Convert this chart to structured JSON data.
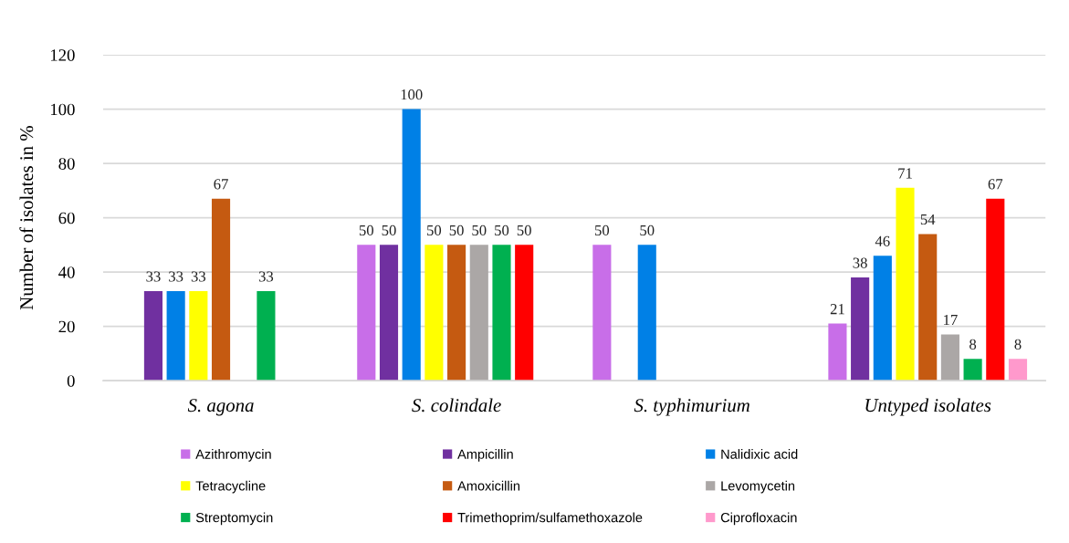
{
  "chart_data": {
    "type": "bar",
    "ylabel": "Number of isolates in %",
    "categories": [
      "S. agona",
      "S. colindale",
      "S. typhimurium",
      "Untyped isolates"
    ],
    "series": [
      {
        "name": "Azithromycin",
        "color": "#c86ee8",
        "values": [
          null,
          50,
          50,
          21
        ]
      },
      {
        "name": "Ampicillin",
        "color": "#7030a0",
        "values": [
          33,
          50,
          null,
          38
        ]
      },
      {
        "name": "Nalidixic acid",
        "color": "#0080e6",
        "values": [
          33,
          100,
          50,
          46
        ]
      },
      {
        "name": "Tetracycline",
        "color": "#ffff00",
        "values": [
          33,
          50,
          null,
          71
        ]
      },
      {
        "name": "Amoxicillin",
        "color": "#c55a11",
        "values": [
          67,
          50,
          null,
          54
        ]
      },
      {
        "name": "Levomycetin",
        "color": "#aba7a6",
        "values": [
          null,
          50,
          null,
          17
        ]
      },
      {
        "name": "Streptomycin",
        "color": "#00b050",
        "values": [
          33,
          50,
          null,
          8
        ]
      },
      {
        "name": "Trimethoprim/sulfamethoxazole",
        "color": "#ff0000",
        "values": [
          null,
          50,
          null,
          67
        ]
      },
      {
        "name": "Ciprofloxacin",
        "color": "#ff99cc",
        "values": [
          null,
          null,
          null,
          8
        ]
      }
    ],
    "ylim": [
      0,
      120
    ],
    "yticks": [
      0,
      20,
      40,
      60,
      80,
      100,
      120
    ],
    "grid": "y",
    "legend": "bottom",
    "data_labels": true
  }
}
